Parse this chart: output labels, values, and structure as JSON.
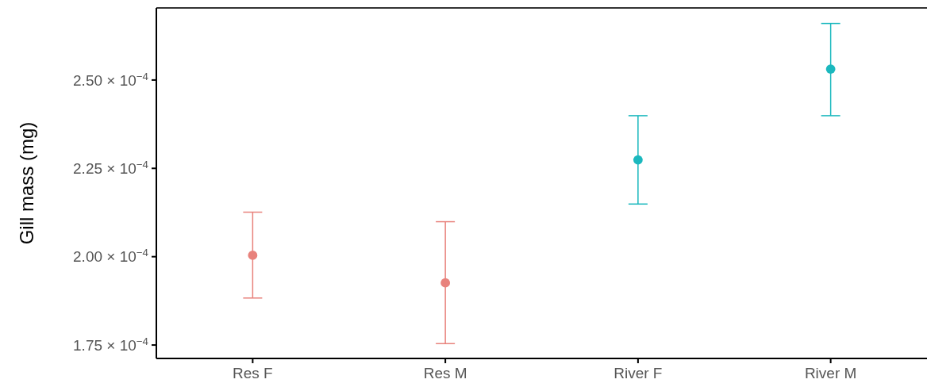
{
  "chart_data": {
    "type": "scatter",
    "ylabel": "Gill mass (mg)",
    "categories": [
      "Res F",
      "Res M",
      "River F",
      "River M"
    ],
    "values": [
      0.0002004,
      0.0001926,
      0.0002274,
      0.0002531
    ],
    "colors": [
      "#e8827c",
      "#e8827c",
      "#1bb8be",
      "#1bb8be"
    ],
    "errors": [
      [
        0.0001883,
        0.0002126
      ],
      [
        0.0001754,
        0.0002099
      ],
      [
        0.0002149,
        0.0002399
      ],
      [
        0.0002399,
        0.000266
      ]
    ],
    "marker": "circle",
    "ylim": [
      0.0001712,
      0.0002704
    ],
    "yticks": [
      {
        "value": 0.000175,
        "label": "1.75 × 10$^{−4}$"
      },
      {
        "value": 0.0002,
        "label": "2.00 × 10$^{−4}$"
      },
      {
        "value": 0.000225,
        "label": "2.25 × 10$^{−4}$"
      },
      {
        "value": 0.00025,
        "label": "2.50 × 10$^{−4}$"
      }
    ],
    "grid": false
  }
}
